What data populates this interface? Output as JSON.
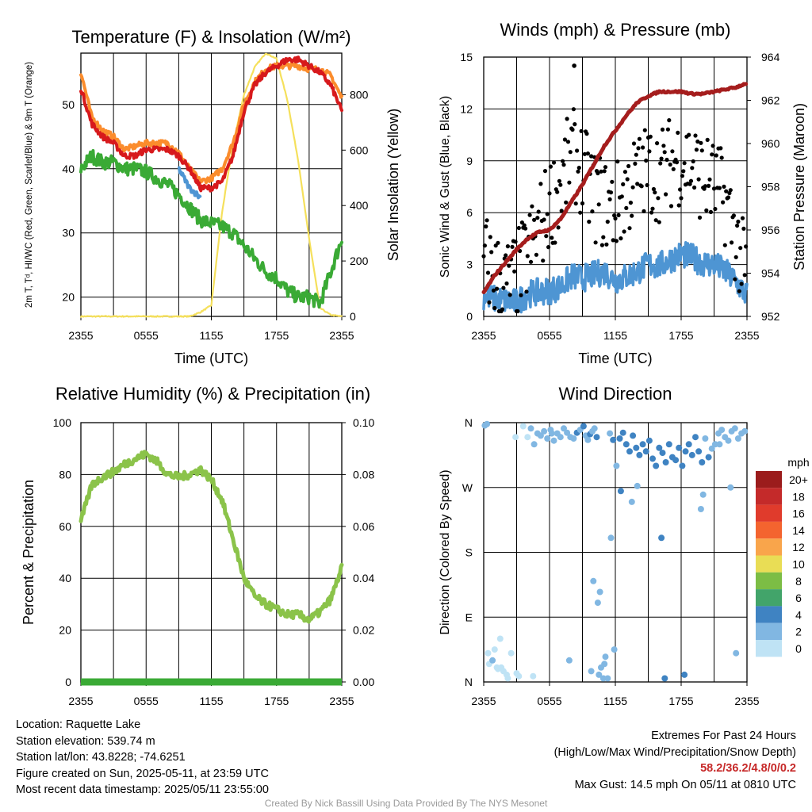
{
  "colors": {
    "red": "#d7191c",
    "orange": "#fb8c2c",
    "green": "#3aaa35",
    "blue": "#4e95d3",
    "yellow": "#f5e05c",
    "maroon": "#a51d1d",
    "lightgreen": "#8bc34a",
    "precip": "#3aaa35",
    "extremes": "#c62828",
    "credit": "#9a9a9a"
  },
  "chart_data": [
    {
      "type": "line",
      "title": "Temperature (F) & Insolation (W/m²)",
      "xlabel": "Time (UTC)",
      "ylabel": "2m T, Tᵈ, HI/WC (Red, Green, Scarlet/Blue) & 9m T (Orange)",
      "ylabel_right": "Solar Insolation (Yellow)",
      "x_ticks": [
        "2355",
        "0555",
        "1155",
        "1755",
        "2355"
      ],
      "ylim": [
        17,
        58
      ],
      "y_ticks": [
        20,
        30,
        40,
        50
      ],
      "ylim_right": [
        0,
        950
      ],
      "y_ticks_right": [
        0,
        200,
        400,
        600,
        800
      ],
      "x_hours": [
        0,
        1,
        2,
        3,
        4,
        5,
        6,
        7,
        8,
        9,
        10,
        11,
        12,
        13,
        14,
        15,
        16,
        17,
        18,
        19,
        20,
        21,
        22,
        23,
        24
      ],
      "series": [
        {
          "name": "2m T (Red)",
          "color_key": "red",
          "axis": "left",
          "values": [
            52.5,
            47,
            45,
            44,
            42,
            42,
            43,
            43,
            43,
            42,
            40,
            37,
            37,
            38,
            42,
            49,
            53,
            55,
            56,
            57,
            57,
            56,
            55,
            53,
            49
          ]
        },
        {
          "name": "9m T (Orange)",
          "color_key": "orange",
          "axis": "left",
          "values": [
            55,
            48,
            46,
            45,
            43,
            43.5,
            44,
            44,
            44,
            42.5,
            40,
            38,
            38.5,
            40,
            44,
            50,
            53.5,
            55.5,
            56,
            56,
            56,
            55.5,
            55.5,
            54.5,
            51
          ]
        },
        {
          "name": "Td (Green)",
          "color_key": "green",
          "axis": "left",
          "values": [
            40,
            42,
            41,
            41,
            40,
            40,
            39.5,
            38.5,
            37.5,
            36,
            34,
            32,
            31.5,
            31,
            30,
            28,
            26,
            24,
            23,
            21,
            20,
            20,
            19,
            24,
            29
          ]
        },
        {
          "name": "WC (Blue)",
          "color_key": "blue",
          "axis": "left",
          "values": [
            null,
            null,
            null,
            null,
            null,
            null,
            null,
            null,
            null,
            40,
            37,
            35.5,
            null,
            null,
            null,
            45,
            null,
            null,
            null,
            null,
            null,
            null,
            null,
            null,
            null
          ]
        },
        {
          "name": "Solar Insolation (Yellow)",
          "color_key": "yellow",
          "axis": "right",
          "values": [
            0,
            0,
            0,
            0,
            0,
            0,
            0,
            0,
            0,
            0,
            0,
            15,
            40,
            380,
            620,
            800,
            900,
            950,
            930,
            780,
            560,
            280,
            30,
            5,
            0
          ]
        }
      ]
    },
    {
      "type": "scatter",
      "title": "Winds (mph) & Pressure (mb)",
      "xlabel": "Time (UTC)",
      "ylabel": "Sonic Wind & Gust (Blue, Black)",
      "ylabel_right": "Station Pressure (Maroon)",
      "x_ticks": [
        "2355",
        "0555",
        "1155",
        "1755",
        "2355"
      ],
      "ylim": [
        0,
        15
      ],
      "y_ticks": [
        0,
        3,
        6,
        9,
        12,
        15
      ],
      "ylim_right": [
        952,
        964
      ],
      "y_ticks_right": [
        952,
        954,
        956,
        958,
        960,
        962,
        964
      ],
      "x_hours": [
        0,
        1,
        2,
        3,
        4,
        5,
        6,
        7,
        8,
        9,
        10,
        11,
        12,
        13,
        14,
        15,
        16,
        17,
        18,
        19,
        20,
        21,
        22,
        23,
        24
      ],
      "series": [
        {
          "name": "Sonic Wind (Blue)",
          "color_key": "blue",
          "axis": "left",
          "values": [
            1.2,
            1.0,
            0.9,
            0.8,
            1.3,
            1.4,
            1.5,
            1.7,
            2.3,
            2.2,
            2.4,
            2.6,
            2.1,
            2.3,
            2.6,
            3.0,
            2.9,
            3.3,
            3.6,
            3.4,
            3.1,
            3.0,
            2.6,
            2.0,
            1.2
          ]
        },
        {
          "name": "Gust (Black)",
          "color_key": "black",
          "axis": "left",
          "values": [
            3.5,
            2.4,
            1.8,
            2.2,
            3.6,
            5.0,
            6.5,
            7.5,
            9.5,
            8.5,
            7.0,
            6.5,
            6.2,
            7.2,
            8.0,
            8.5,
            8.2,
            8.9,
            9.2,
            8.8,
            8.0,
            7.6,
            6.8,
            4.5,
            2.0
          ]
        },
        {
          "name": "Station Pressure (Maroon)",
          "color_key": "maroon",
          "axis": "right",
          "values": [
            953.1,
            953.9,
            954.5,
            955.1,
            955.6,
            955.9,
            956.0,
            956.5,
            957.3,
            958.1,
            959.0,
            959.9,
            960.6,
            961.3,
            961.9,
            962.2,
            962.4,
            962.4,
            962.4,
            962.3,
            962.3,
            962.4,
            962.5,
            962.6,
            962.8
          ]
        }
      ],
      "max_gust": {
        "value": 14.5,
        "hour": 8.25
      }
    },
    {
      "type": "line",
      "title": "Relative Humidity (%) & Precipitation (in)",
      "ylabel": "Percent & Precipitation",
      "x_ticks": [
        "2355",
        "0555",
        "1155",
        "1755",
        "2355"
      ],
      "ylim": [
        0,
        100
      ],
      "y_ticks": [
        0,
        20,
        40,
        60,
        80,
        100
      ],
      "ylim_right": [
        0,
        0.1
      ],
      "y_ticks_right": [
        "0.00",
        "0.02",
        "0.04",
        "0.06",
        "0.08",
        "0.10"
      ],
      "x_hours": [
        0,
        1,
        2,
        3,
        4,
        5,
        6,
        7,
        8,
        9,
        10,
        11,
        12,
        13,
        14,
        15,
        16,
        17,
        18,
        19,
        20,
        21,
        22,
        23,
        24
      ],
      "series": [
        {
          "name": "Relative Humidity",
          "color_key": "lightgreen",
          "axis": "left",
          "values": [
            62,
            76,
            79,
            81,
            84,
            86,
            88,
            85,
            80,
            79,
            80,
            82,
            78,
            70,
            55,
            40,
            33,
            30,
            28,
            26,
            26,
            24,
            27,
            32,
            44
          ]
        },
        {
          "name": "Precipitation",
          "color_key": "precip",
          "axis": "right",
          "values": [
            0,
            0,
            0,
            0,
            0,
            0,
            0,
            0,
            0,
            0,
            0,
            0,
            0,
            0,
            0,
            0,
            0,
            0,
            0,
            0,
            0,
            0,
            0,
            0,
            0
          ]
        }
      ]
    },
    {
      "type": "scatter",
      "title": "Wind Direction",
      "ylabel": "Direction (Colored By Speed)",
      "x_ticks": [
        "2355",
        "0555",
        "1155",
        "1755",
        "2355"
      ],
      "y_ticks": [
        "N",
        "E",
        "S",
        "W",
        "N"
      ],
      "ylim": [
        0,
        360
      ],
      "colorbar": {
        "title": "mph",
        "labels": [
          "20+",
          "18",
          "16",
          "14",
          "12",
          "10",
          "8",
          "6",
          "4",
          "2",
          "0"
        ],
        "colors": [
          "#9b1c1c",
          "#c42a2a",
          "#e03b2c",
          "#f4642f",
          "#f9a54b",
          "#e9dd55",
          "#7cbd45",
          "#42a46a",
          "#3f83c2",
          "#81b7e2",
          "#bfe3f5"
        ]
      },
      "x_hours": [
        0.1,
        0.3,
        0.5,
        0.8,
        1.0,
        1.2,
        1.5,
        1.8,
        2.1,
        2.5,
        2.9,
        3.2,
        3.6,
        4.0,
        4.3,
        4.6,
        4.9,
        5.2,
        5.5,
        5.8,
        6.1,
        6.4,
        6.7,
        7.0,
        7.3,
        7.6,
        7.9,
        8.2,
        8.5,
        8.8,
        9.1,
        9.3,
        9.5,
        9.7,
        9.9,
        10.1,
        10.3,
        10.5,
        10.7,
        10.9,
        11.1,
        11.3,
        11.5,
        11.8,
        12.1,
        12.4,
        12.7,
        13.0,
        13.3,
        13.6,
        13.9,
        14.2,
        14.5,
        14.8,
        15.1,
        15.4,
        15.7,
        16.0,
        16.3,
        16.6,
        16.9,
        17.2,
        17.5,
        17.8,
        18.1,
        18.4,
        18.7,
        19.0,
        19.3,
        19.6,
        19.9,
        20.2,
        20.5,
        20.8,
        21.1,
        21.4,
        21.7,
        22.0,
        22.3,
        22.6,
        22.9,
        23.2,
        23.5,
        23.8,
        1.3,
        2.2,
        3.0,
        4.5,
        6.2,
        7.8,
        9.8,
        10.4,
        11.0,
        12.5,
        14.0,
        16.5,
        18.3,
        20.0,
        21.5,
        23.0,
        0.4,
        1.6,
        10.0,
        11.6,
        13.5,
        10.6,
        11.9,
        16.2,
        19.8,
        22.5
      ],
      "directions": [
        356,
        358,
        25,
        30,
        45,
        20,
        60,
        15,
        10,
        40,
        340,
        8,
        355,
        340,
        352,
        330,
        345,
        342,
        348,
        338,
        350,
        335,
        345,
        340,
        352,
        346,
        340,
        338,
        346,
        350,
        355,
        342,
        336,
        344,
        348,
        352,
        340,
        10,
        20,
        5,
        35,
        5,
        345,
        336,
        300,
        338,
        346,
        330,
        320,
        342,
        325,
        315,
        330,
        320,
        335,
        310,
        300,
        325,
        318,
        305,
        330,
        312,
        308,
        325,
        300,
        320,
        330,
        315,
        340,
        320,
        305,
        338,
        312,
        324,
        330,
        345,
        350,
        340,
        335,
        348,
        352,
        338,
        345,
        348,
        18,
        5,
        12,
        8,
        345,
        30,
        15,
        110,
        25,
        265,
        272,
        5,
        10,
        260,
        330,
        40,
        40,
        20,
        140,
        200,
        250,
        125,
        45,
        200,
        240,
        270
      ],
      "speeds": [
        1,
        1,
        0.5,
        1,
        0.5,
        0.5,
        0.5,
        0.5,
        0.5,
        0.5,
        0.5,
        0.5,
        0.5,
        0.5,
        1,
        1,
        2,
        2,
        1.5,
        2,
        2,
        2,
        1.5,
        2,
        2.5,
        2,
        2,
        2.5,
        3,
        2,
        3,
        2,
        2,
        3,
        2.5,
        2,
        3,
        1.5,
        2,
        2,
        1.5,
        2,
        2.5,
        3,
        2,
        3,
        3,
        3.5,
        3.5,
        3,
        3.5,
        4,
        3.5,
        3.5,
        3.5,
        3,
        4,
        3.5,
        3.5,
        3.5,
        3.5,
        4,
        3.5,
        3.5,
        3.5,
        4,
        3.5,
        3,
        3.5,
        3,
        3,
        2.5,
        3,
        2.5,
        2,
        2,
        2,
        1.5,
        1.5,
        1.5,
        1,
        1,
        1,
        1,
        0.5,
        0.5,
        0.5,
        0.5,
        1,
        1,
        2,
        2,
        2.5,
        3,
        2,
        3.5,
        3,
        2.5,
        2,
        1,
        0.5,
        0.5,
        1,
        2,
        2,
        1,
        2,
        3,
        2,
        1
      ]
    }
  ],
  "info": {
    "location": "Location: Raquette Lake",
    "elevation": "Station elevation: 539.74 m",
    "latlon": "Station lat/lon: 43.8228; -74.6251",
    "created": "Figure created on Sun, 2025-05-11, at 23:59 UTC",
    "recent": "Most recent data timestamp: 2025/05/11 23:55:00"
  },
  "extremes": {
    "title": "Extremes For Past 24 Hours",
    "subtitle": "(High/Low/Max Wind/Precipitation/Snow Depth)",
    "values": "58.2/36.2/4.8/0/0.2",
    "max_gust": "Max Gust: 14.5 mph On 05/11 at 0810 UTC"
  },
  "credit": "Created By Nick Bassill Using Data Provided By The NYS Mesonet"
}
